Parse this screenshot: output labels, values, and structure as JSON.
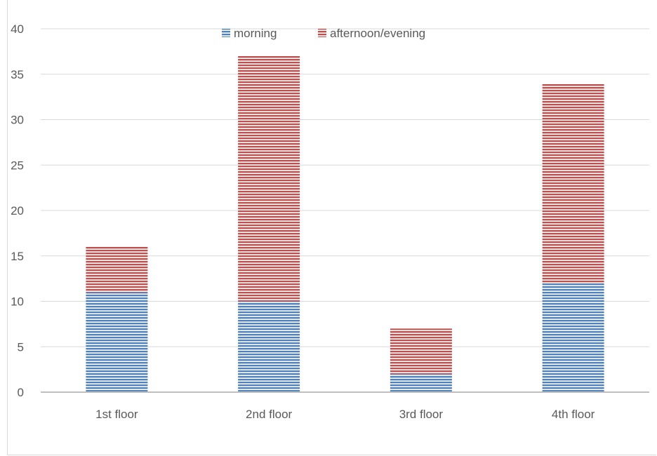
{
  "chart_data": {
    "type": "bar",
    "stacked": true,
    "categories": [
      "1st floor",
      "2nd floor",
      "3rd floor",
      "4th floor"
    ],
    "series": [
      {
        "name": "morning",
        "values": [
          11,
          10,
          2,
          12
        ],
        "color": "#4f81bd"
      },
      {
        "name": "afternoon/evening",
        "values": [
          5,
          27,
          5,
          22
        ],
        "color": "#c0504d"
      }
    ],
    "y_ticks": [
      0,
      5,
      10,
      15,
      20,
      25,
      30,
      35,
      40
    ],
    "ylim": [
      0,
      40
    ],
    "grid": true,
    "legend_position": "top-center",
    "fill_pattern": "horizontal-stripes"
  }
}
